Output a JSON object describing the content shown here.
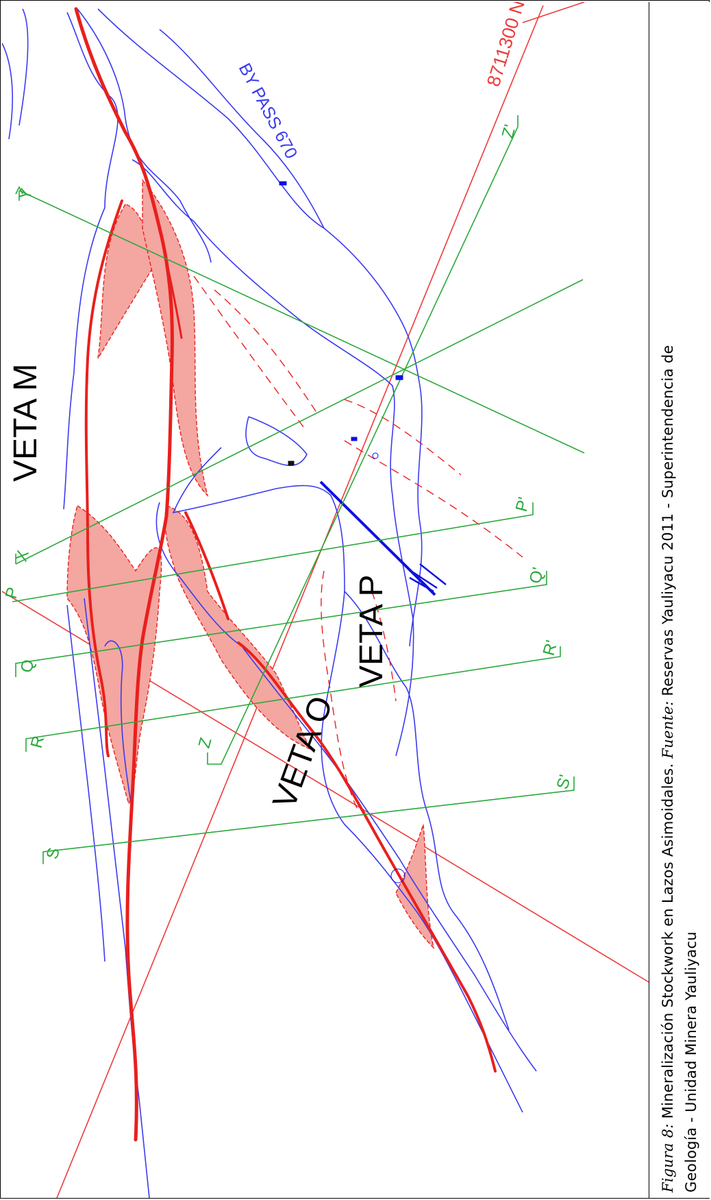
{
  "colors": {
    "vein": "#e8201e",
    "contour": "#3a3af0",
    "section": "#2aa83a",
    "zone_fill": "#f4a6a0",
    "fault": "#1010e0",
    "grid": "#ee3a3a",
    "text": "#000000"
  },
  "map": {
    "vein_labels": [
      "VETA M",
      "VETA P",
      "VETA O"
    ],
    "gallery_label": "BY PASS 670",
    "grid_label": "8711300 N",
    "section_labels": [
      "Y",
      "X",
      "P",
      "Q",
      "R",
      "S",
      "Z",
      "Z'",
      "P'",
      "Q'",
      "R'",
      "S'"
    ]
  },
  "caption": {
    "figure_label": "Figura 8:",
    "title": "Mineralización Stockwork en Lazos Asimoidales.",
    "source_label": "Fuente:",
    "source": "Reservas Yauliyacu 2011 - Superintendencia de",
    "source_line2": "Geología - Unidad Minera Yauliyacu"
  }
}
